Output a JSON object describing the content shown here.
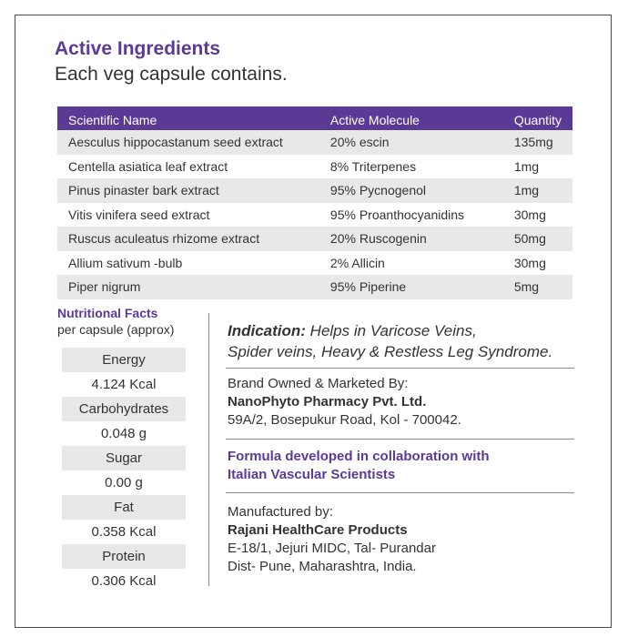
{
  "header": {
    "title": "Active Ingredients",
    "subtitle": "Each veg capsule contains."
  },
  "ingredients": {
    "columns": [
      "Scientific Name",
      "Active Molecule",
      "Quantity"
    ],
    "rows": [
      [
        "Aesculus hippocastanum seed extract",
        "20% escin",
        "135mg"
      ],
      [
        "Centella asiatica leaf extract",
        "8% Triterpenes",
        "1mg"
      ],
      [
        "Pinus pinaster bark extract",
        "95% Pycnogenol",
        "1mg"
      ],
      [
        "Vitis vinifera seed extract",
        "95% Proanthocyanidins",
        "30mg"
      ],
      [
        "Ruscus aculeatus rhizome  extract",
        "20% Ruscogenin",
        "50mg"
      ],
      [
        "Allium sativum -bulb",
        "2% Allicin",
        "30mg"
      ],
      [
        "Piper nigrum",
        "95% Piperine",
        "5mg"
      ]
    ]
  },
  "nutrition": {
    "title": "Nutritional Facts",
    "subtitle": "per capsule (approx)",
    "items": [
      {
        "label": "Energy",
        "value": "4.124 Kcal"
      },
      {
        "label": "Carbohydrates",
        "value": "0.048 g"
      },
      {
        "label": "Sugar",
        "value": "0.00 g"
      },
      {
        "label": "Fat",
        "value": "0.358 Kcal"
      },
      {
        "label": "Protein",
        "value": "0.306 Kcal"
      }
    ]
  },
  "indication": {
    "lead": "Indication:",
    "text_line1": " Helps in Varicose Veins,",
    "text_line2": "Spider veins, Heavy & Restless Leg Syndrome."
  },
  "brand": {
    "label": "Brand Owned & Marketed By:",
    "name": "NanoPhyto Pharmacy Pvt. Ltd.",
    "address": "59A/2, Bosepukur Road, Kol - 700042."
  },
  "formula": {
    "line1": "Formula developed in collaboration with",
    "line2": "Italian Vascular Scientists"
  },
  "manufacturer": {
    "label": "Manufactured by:",
    "name": "Rajani HealthCare Products",
    "address_line1": "E-18/1, Jejuri MIDC, Tal- Purandar",
    "address_line2": "Dist- Pune, Maharashtra, India."
  },
  "colors": {
    "accent": "#5b3a96",
    "row_shade": "#e8e8e8",
    "text": "#333333"
  }
}
